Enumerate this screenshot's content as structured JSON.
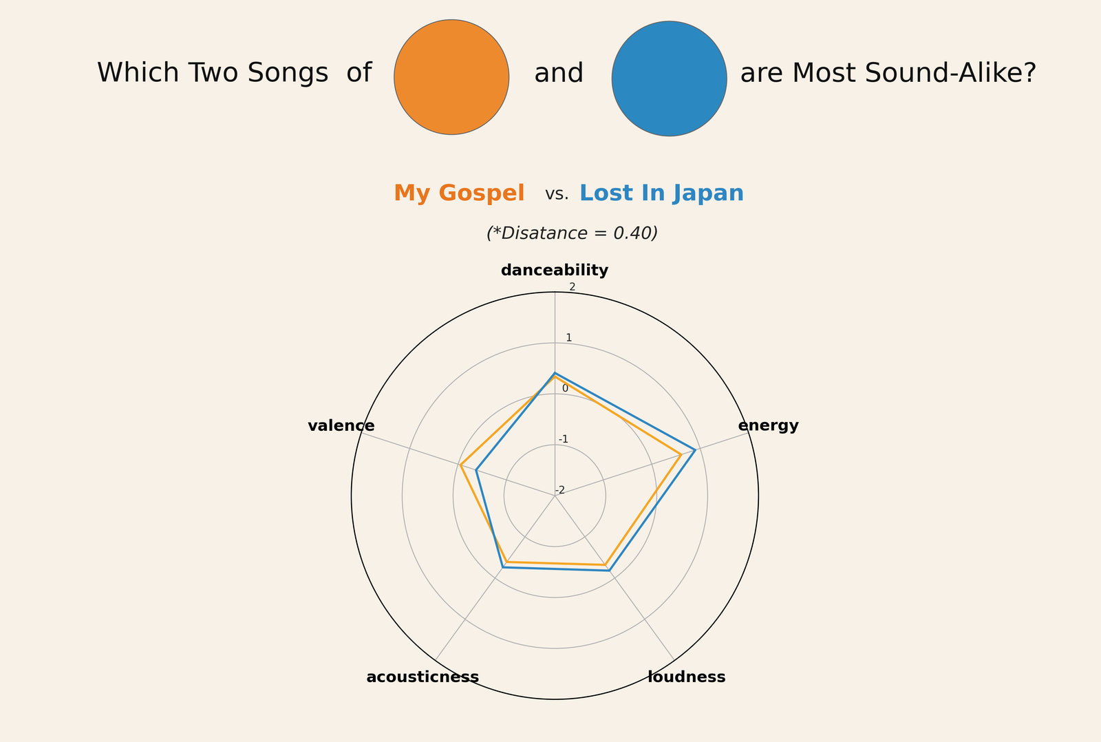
{
  "chart_data": {
    "type": "radar",
    "title_parts": [
      "Which Two Songs  of",
      "and",
      "are Most Sound-Alike?"
    ],
    "subtitle_joiner": "vs.",
    "annotation": "(*Disatance = 0.40)",
    "categories": [
      "danceability",
      "energy",
      "loudness",
      "acousticness",
      "valence"
    ],
    "series": [
      {
        "name": "My Gospel",
        "color": "#f5a623",
        "values": [
          0.34,
          0.61,
          -0.32,
          -0.39,
          -0.05
        ]
      },
      {
        "name": "Lost In Japan",
        "color": "#2e86c1",
        "values": [
          0.41,
          0.9,
          -0.18,
          -0.26,
          -0.37
        ]
      }
    ],
    "ylim": [
      -2,
      2
    ],
    "yticks": [
      -2,
      -1,
      0,
      1,
      2
    ],
    "grid": true
  }
}
